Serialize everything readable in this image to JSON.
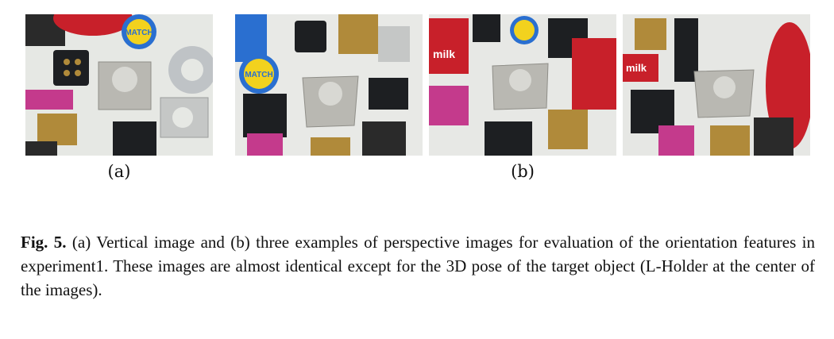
{
  "figure": {
    "panels": [
      {
        "id": "a",
        "kind": "vertical-image"
      },
      {
        "id": "b1",
        "kind": "perspective-image"
      },
      {
        "id": "b2",
        "kind": "perspective-image"
      },
      {
        "id": "b3",
        "kind": "perspective-image"
      }
    ],
    "sublabels": {
      "a": "(a)",
      "b": "(b)"
    },
    "caption": {
      "label": "Fig. 5.",
      "text": "(a) Vertical image and (b) three examples of perspective images for evaluation of the orientation features in experiment1. These images are almost identical except for the 3D pose of the target object (L-Holder at the center of the images)."
    },
    "photo_text": {
      "match_logo": "MATCH",
      "milk_text": "milk"
    },
    "colors": {
      "background": "#ffffff",
      "target_object": "#b9b8b2",
      "red_object": "#c8202a",
      "yellow_logo": "#f2d21e",
      "blue_logo": "#2a6fd0",
      "black_part": "#1d1f22",
      "brass": "#b08a3a",
      "magenta_box": "#c43a8c"
    }
  }
}
